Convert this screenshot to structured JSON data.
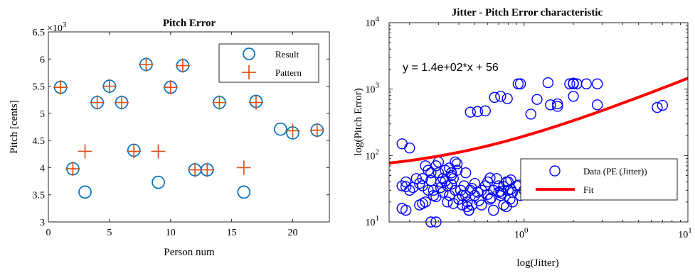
{
  "colors": {
    "result": "#0072BD",
    "pattern": "#D95319",
    "data": "#0000FF",
    "fit": "#FF0000",
    "axis": "#262626"
  },
  "chart_data": [
    {
      "type": "scatter",
      "title": "Pitch Error",
      "xlabel": "Person num",
      "ylabel": "Pitch [cents]",
      "exponent_label": "×10",
      "exponent_power": "3",
      "xlim": [
        0,
        23
      ],
      "ylim": [
        3,
        6.5
      ],
      "xticks": [
        0,
        5,
        10,
        15,
        20
      ],
      "yticks": [
        3,
        3.5,
        4,
        4.5,
        5,
        5.5,
        6,
        6.5
      ],
      "ytick_labels": [
        "3",
        "3.5",
        "4",
        "4.5",
        "5",
        "5.5",
        "6",
        "6.5"
      ],
      "legend_position": "top-right",
      "series": [
        {
          "name": "Result",
          "marker": "circle",
          "x": [
            1,
            2,
            3,
            4,
            5,
            6,
            7,
            8,
            9,
            10,
            11,
            12,
            13,
            14,
            16,
            17,
            19,
            20,
            22
          ],
          "y": [
            5.48,
            3.98,
            3.55,
            5.2,
            5.5,
            5.2,
            4.32,
            5.9,
            3.73,
            5.48,
            5.88,
            3.96,
            3.96,
            5.2,
            3.55,
            5.22,
            4.71,
            4.64,
            4.69
          ]
        },
        {
          "name": "Pattern",
          "marker": "plus",
          "x": [
            1,
            2,
            3,
            4,
            5,
            6,
            7,
            8,
            9,
            10,
            11,
            12,
            13,
            14,
            16,
            17,
            20,
            22
          ],
          "y": [
            5.48,
            3.98,
            4.3,
            5.2,
            5.5,
            5.2,
            4.3,
            5.9,
            4.3,
            5.48,
            5.88,
            3.96,
            3.96,
            5.2,
            4.0,
            5.2,
            4.68,
            4.69
          ]
        }
      ]
    },
    {
      "type": "scatter",
      "title": "Jitter - Pitch Error characteristic",
      "xlabel": "log(Jitter)",
      "ylabel": "log(Pitch Error)",
      "xscale": "log",
      "yscale": "log",
      "xlim": [
        0.15,
        10
      ],
      "ylim": [
        10,
        10000
      ],
      "xticks": [
        1,
        10
      ],
      "yticks": [
        10,
        100,
        1000,
        10000
      ],
      "tick_base": "10",
      "xtick_powers": [
        "0",
        "1"
      ],
      "ytick_powers": [
        "1",
        "2",
        "3",
        "4"
      ],
      "annotation": "y = 1.4e+02*x + 56",
      "legend_position": "bottom-right",
      "series": [
        {
          "name": "Data (PE (Jitter))",
          "marker": "circle",
          "x": [
            0.18,
            0.19,
            0.2,
            0.19,
            0.21,
            0.23,
            0.24,
            0.25,
            0.26,
            0.27,
            0.28,
            0.29,
            0.3,
            0.31,
            0.32,
            0.33,
            0.34,
            0.35,
            0.36,
            0.37,
            0.38,
            0.39,
            0.4,
            0.41,
            0.42,
            0.43,
            0.44,
            0.45,
            0.46,
            0.47,
            0.48,
            0.5,
            0.52,
            0.55,
            0.58,
            0.6,
            0.62,
            0.65,
            0.68,
            0.7,
            0.72,
            0.75,
            0.78,
            0.8,
            0.82,
            0.85,
            0.9,
            0.95,
            1.0,
            1.05,
            0.18,
            0.2,
            0.22,
            0.24,
            0.26,
            0.28,
            0.3,
            0.32,
            0.34,
            0.36,
            0.38,
            0.4,
            0.42,
            0.44,
            0.46,
            0.48,
            0.5,
            0.55,
            0.6,
            0.65,
            0.7,
            0.75,
            0.8,
            0.85,
            0.25,
            0.27,
            0.31,
            0.35,
            0.39,
            0.45,
            0.53,
            0.63,
            0.73,
            0.83,
            0.93,
            0.18,
            0.24,
            0.29,
            0.36,
            0.33,
            0.62,
            0.72,
            0.83,
            0.78,
            0.19,
            0.23,
            0.37,
            0.95,
            1.1,
            1.2,
            1.4,
            1.6,
            1.6,
            2.0,
            2.0,
            2.1,
            2.4,
            2.8,
            0.47,
            0.52,
            0.58,
            0.66,
            0.72,
            0.79,
            0.92,
            1.45,
            1.9,
            2.0,
            2.8,
            6.5,
            7.0,
            0.27,
            0.29
          ],
          "y": [
            35,
            40,
            30,
            15,
            33,
            18,
            45,
            20,
            30,
            55,
            25,
            70,
            80,
            40,
            28,
            60,
            35,
            25,
            50,
            45,
            80,
            60,
            22,
            30,
            25,
            35,
            55,
            20,
            15,
            30,
            18,
            25,
            28,
            30,
            35,
            40,
            22,
            30,
            45,
            35,
            25,
            18,
            40,
            30,
            22,
            28,
            35,
            25,
            30,
            35,
            150,
            130,
            45,
            35,
            60,
            30,
            55,
            45,
            20,
            55,
            30,
            22,
            18,
            25,
            15,
            32,
            38,
            18,
            26,
            15,
            28,
            34,
            40,
            20,
            70,
            42,
            33,
            65,
            75,
            17,
            21,
            23,
            27,
            31,
            36,
            16,
            19,
            24,
            37,
            41,
            46,
            29,
            43,
            17,
            34,
            38,
            19,
            1200,
            420,
            700,
            1250,
            550,
            600,
            1200,
            780,
            1200,
            1200,
            580,
            450,
            460,
            470,
            750,
            780,
            720,
            1200,
            580,
            1200,
            1230,
            1200,
            530,
            570,
            10,
            10
          ]
        },
        {
          "name": "Fit",
          "line": true,
          "slope": 140,
          "intercept": 56
        }
      ]
    }
  ]
}
